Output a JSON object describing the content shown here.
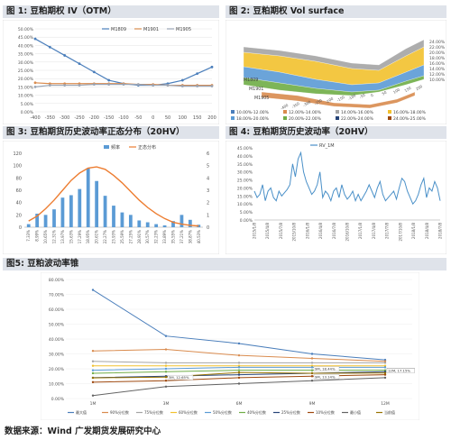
{
  "figures": {
    "fig1": {
      "title": "图 1: 豆粕期权 IV（OTM）"
    },
    "fig2": {
      "title": "图 2: 豆粕期权 Vol surface"
    },
    "fig3": {
      "title": "图 3: 豆粕期货历史波动率正态分布（20HV）"
    },
    "fig4": {
      "title": "图 4: 豆粕期货历史波动率（20HV）"
    },
    "fig5": {
      "title": "图5: 豆粕波动率锥"
    }
  },
  "footer": "数据来源：Wind 广发期货发展研究中心",
  "chart_data": [
    {
      "id": "fig1",
      "type": "line",
      "x": [
        -400,
        -350,
        -300,
        -250,
        -200,
        -150,
        -100,
        -50,
        0,
        50,
        100,
        150,
        200
      ],
      "ylim": [
        0,
        50
      ],
      "yticks": [
        "0.00%",
        "5.00%",
        "10.00%",
        "15.00%",
        "20.00%",
        "25.00%",
        "30.00%",
        "35.00%",
        "40.00%",
        "45.00%",
        "50.00%"
      ],
      "legend_position": "top",
      "series": [
        {
          "name": "M1809",
          "color": "#4a7ebb",
          "values": [
            44,
            39,
            34,
            29,
            24,
            19,
            17,
            16,
            16,
            17,
            19,
            23,
            27
          ]
        },
        {
          "name": "M1901",
          "color": "#d98b4e",
          "values": [
            17.5,
            17,
            17,
            17,
            17,
            17,
            17,
            16.5,
            16.5,
            16,
            16,
            16,
            16
          ]
        },
        {
          "name": "M1905",
          "color": "#9aa5b5",
          "values": [
            15,
            16,
            16,
            16,
            16.5,
            16.5,
            16.5,
            16.5,
            16,
            16,
            15.5,
            15.5,
            15.5
          ]
        }
      ]
    },
    {
      "id": "fig2",
      "type": "area",
      "zticks": [
        "10.00%",
        "12.00%",
        "14.00%",
        "16.00%",
        "18.00%",
        "20.00%",
        "22.00%",
        "24.00%"
      ],
      "row_labels": [
        "M1809",
        "M1901",
        "M1905"
      ],
      "xticks": [
        "-400",
        "-350",
        "-300",
        "-250",
        "-200",
        "-150",
        "-100",
        "-50",
        "0",
        "50",
        "100",
        "150",
        "200"
      ],
      "legend": [
        {
          "label": "10.00%-12.00%",
          "color": "#4a7ebb"
        },
        {
          "label": "12.00%-14.00%",
          "color": "#d98b4e"
        },
        {
          "label": "14.00%-16.00%",
          "color": "#a5a5a5"
        },
        {
          "label": "16.00%-18.00%",
          "color": "#f2c12e"
        },
        {
          "label": "18.00%-20.00%",
          "color": "#5b9bd5"
        },
        {
          "label": "20.00%-22.00%",
          "color": "#70ad47"
        },
        {
          "label": "22.00%-24.00%",
          "color": "#264478"
        },
        {
          "label": "24.00%-25.00%",
          "color": "#9e480e"
        }
      ]
    },
    {
      "id": "fig3",
      "type": "bar",
      "legend": [
        "频率",
        "正态分布"
      ],
      "categories": [
        "7.33%",
        "8.99%",
        "10.65%",
        "12.31%",
        "13.97%",
        "15.63%",
        "17.29%",
        "18.95%",
        "20.61%",
        "22.27%",
        "23.93%",
        "25.59%",
        "27.25%",
        "28.91%",
        "30.57%",
        "32.23%",
        "33.89%",
        "35.55%",
        "37.21%",
        "38.87%",
        "40.53%"
      ],
      "values": [
        5,
        22,
        20,
        29,
        48,
        52,
        62,
        96,
        75,
        51,
        35,
        24,
        20,
        11,
        8,
        5,
        3,
        10,
        20,
        12,
        4
      ],
      "normal_values": [
        0.5,
        0.9,
        1.5,
        2.2,
        3.0,
        3.8,
        4.4,
        4.8,
        4.9,
        4.7,
        4.2,
        3.6,
        2.9,
        2.2,
        1.6,
        1.1,
        0.7,
        0.4,
        0.25,
        0.15,
        0.1
      ],
      "ylim": [
        0,
        120
      ],
      "y2lim": [
        0,
        6
      ],
      "yticks": [
        "0",
        "20",
        "40",
        "60",
        "80",
        "100",
        "120"
      ],
      "y2ticks": [
        "0",
        "1",
        "2",
        "3",
        "4",
        "5",
        "6"
      ]
    },
    {
      "id": "fig4",
      "type": "line",
      "legend": "RV_1M",
      "ylim": [
        0,
        45
      ],
      "yticks": [
        "0.00%",
        "5.00%",
        "10.00%",
        "15.00%",
        "20.00%",
        "25.00%",
        "30.00%",
        "35.00%",
        "40.00%",
        "45.00%"
      ],
      "xticks": [
        "2015/1/8",
        "2015/4/8",
        "2015/7/8",
        "2015/10/8",
        "2016/1/8",
        "2016/4/8",
        "2016/7/8",
        "2016/10/8",
        "2017/1/8",
        "2017/4/8",
        "2017/7/8",
        "2017/10/8",
        "2018/1/8",
        "2018/4/8",
        "2018/7/8"
      ],
      "values": [
        18,
        14,
        16,
        22,
        12,
        18,
        20,
        14,
        12,
        18,
        15,
        17,
        19,
        22,
        35,
        27,
        38,
        42,
        30,
        24,
        20,
        16,
        18,
        22,
        30,
        14,
        18,
        16,
        12,
        18,
        20,
        14,
        22,
        16,
        13,
        15,
        18,
        12,
        16,
        12,
        15,
        18,
        22,
        18,
        14,
        20,
        24,
        16,
        12,
        14,
        16,
        18,
        13,
        20,
        26,
        24,
        18,
        14,
        10,
        12,
        16,
        22,
        26,
        14,
        20,
        18,
        24,
        20,
        12
      ]
    },
    {
      "id": "fig5",
      "type": "line",
      "ylim": [
        0,
        80
      ],
      "yticks": [
        "0.00%",
        "10.00%",
        "20.00%",
        "30.00%",
        "40.00%",
        "50.00%",
        "60.00%",
        "70.00%",
        "80.00%"
      ],
      "categories": [
        "1M",
        "3M",
        "6M",
        "9M",
        "12M"
      ],
      "series": [
        {
          "name": "最大值",
          "color": "#4a7ebb",
          "values": [
            73,
            42,
            37,
            30,
            26
          ]
        },
        {
          "name": "90%分位数",
          "color": "#d98b4e",
          "values": [
            32,
            33,
            29,
            27,
            25
          ]
        },
        {
          "name": "75%分位数",
          "color": "#a5a5a5",
          "values": [
            25,
            24,
            24,
            24,
            24
          ]
        },
        {
          "name": "60%分位数",
          "color": "#f2c12e",
          "values": [
            22,
            22,
            22,
            22,
            22
          ]
        },
        {
          "name": "50%分位数",
          "color": "#5b9bd5",
          "values": [
            19,
            20,
            21,
            21,
            21
          ]
        },
        {
          "name": "40%分位数",
          "color": "#70ad47",
          "values": [
            17,
            18,
            19,
            19,
            19
          ]
        },
        {
          "name": "25%分位数",
          "color": "#264478",
          "values": [
            14,
            15,
            16,
            17,
            18
          ]
        },
        {
          "name": "10%分位数",
          "color": "#9e480e",
          "values": [
            11,
            12,
            14,
            15,
            16
          ]
        },
        {
          "name": "最小值",
          "color": "#636363",
          "values": [
            2,
            8,
            10,
            12,
            14
          ]
        },
        {
          "name": "当前值",
          "color": "#997300",
          "values": [
            13.9,
            14.4,
            17.5,
            17.0,
            17.1
          ]
        }
      ],
      "annotations": [
        {
          "text": "3M, 12.65%",
          "x": "3M",
          "y": 12.65
        },
        {
          "text": "9M, 13.14%",
          "x": "9M",
          "y": 13.14
        },
        {
          "text": "12M, 17.42%",
          "x": "12M",
          "y": 17.42
        },
        {
          "text": "9M, 18.44%",
          "x": "9M",
          "y": 18.44
        },
        {
          "text": "12M, 17.15%",
          "x": "12M",
          "y": 17.15
        }
      ]
    }
  ]
}
